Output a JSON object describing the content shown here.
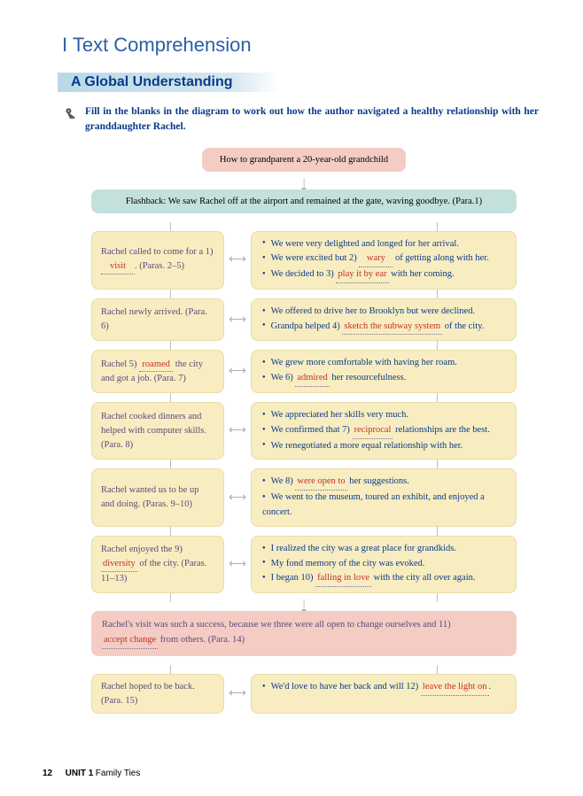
{
  "header": {
    "section": "I  Text Comprehension",
    "sub": "A   Global Understanding",
    "instruction": "Fill in the blanks in the diagram to work out how the author navigated a healthy relationship with her granddaughter Rachel."
  },
  "top": "How to grandparent a 20-year-old grandchild",
  "flashback": "Flashback: We saw Rachel off at the airport and remained at the gate, waving goodbye. (Para.1)",
  "rows": [
    {
      "left_pre": "Rachel called to come for a 1) ",
      "left_ans": "visit",
      "left_post": ". (Paras. 2–5)",
      "right": [
        {
          "pre": "We were very delighted and longed for her arrival.",
          "ans": "",
          "post": ""
        },
        {
          "pre": "We were excited but 2) ",
          "ans": "wary",
          "post": " of getting along with her."
        },
        {
          "pre": "We decided to 3) ",
          "ans": "play it by ear",
          "post": " with her coming."
        }
      ]
    },
    {
      "left_pre": "Rachel newly arrived. (Para. 6)",
      "left_ans": "",
      "left_post": "",
      "right": [
        {
          "pre": "We offered to drive her to Brooklyn but were declined.",
          "ans": "",
          "post": ""
        },
        {
          "pre": "Grandpa helped 4) ",
          "ans": "sketch the subway system",
          "post": " of the city."
        }
      ]
    },
    {
      "left_pre": "Rachel 5) ",
      "left_ans": "roamed",
      "left_post": " the city and got a job. (Para. 7)",
      "right": [
        {
          "pre": "We grew more comfortable with having her roam.",
          "ans": "",
          "post": ""
        },
        {
          "pre": "We 6) ",
          "ans": "admired",
          "post": " her resourcefulness."
        }
      ]
    },
    {
      "left_pre": "Rachel cooked dinners and helped with computer skills. (Para. 8)",
      "left_ans": "",
      "left_post": "",
      "right": [
        {
          "pre": "We appreciated her skills very much.",
          "ans": "",
          "post": ""
        },
        {
          "pre": "We confirmed that 7) ",
          "ans": "reciprocal",
          "post": " relationships are the best."
        },
        {
          "pre": "We renegotiated a more equal relationship with her.",
          "ans": "",
          "post": ""
        }
      ]
    },
    {
      "left_pre": "Rachel wanted us to be up and doing. (Paras. 9–10)",
      "left_ans": "",
      "left_post": "",
      "right": [
        {
          "pre": "We 8) ",
          "ans": "were open to",
          "post": " her suggestions."
        },
        {
          "pre": "We went to the museum, toured an exhibit, and enjoyed a concert.",
          "ans": "",
          "post": ""
        }
      ]
    },
    {
      "left_pre": "Rachel enjoyed the 9) ",
      "left_ans": "diversity",
      "left_post": " of the city. (Paras. 11–13)",
      "right": [
        {
          "pre": "I realized the city was a great place for grandkids.",
          "ans": "",
          "post": ""
        },
        {
          "pre": "My fond memory of the city was evoked.",
          "ans": "",
          "post": ""
        },
        {
          "pre": "I began 10) ",
          "ans": "falling in love",
          "post": " with the city all over again."
        }
      ]
    }
  ],
  "summary": {
    "pre": "Rachel's visit was such a success, because we three were all open to change ourselves and 11) ",
    "ans": "accept change",
    "post": " from others. (Para. 14)"
  },
  "final": {
    "left_pre": "Rachel hoped to be back. (Para. 15)",
    "left_ans": "",
    "left_post": "",
    "right": [
      {
        "pre": "We'd love to have her back and will 12) ",
        "ans": "leave the light on",
        "post": "."
      }
    ]
  },
  "footer": {
    "page": "12",
    "unit": "UNIT 1",
    "title": "Family Ties"
  },
  "colors": {
    "blue": "#0a3a8a",
    "purple": "#5a4a7a",
    "red": "#c4302b",
    "yellow_bg": "#f8edc0",
    "pink_bg": "#f4ccc4",
    "teal_bg": "#c4e0dc"
  }
}
